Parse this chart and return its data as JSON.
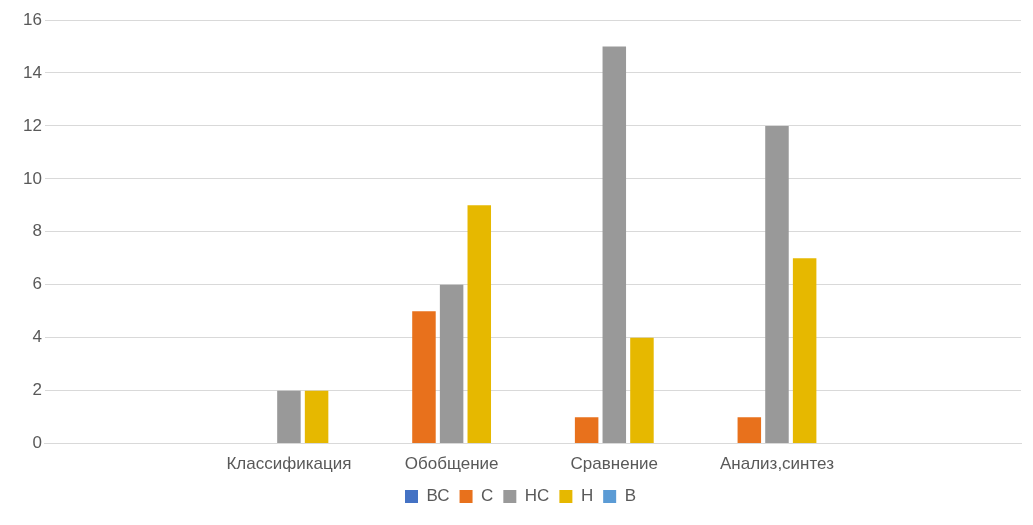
{
  "chart_data": {
    "type": "bar",
    "categories": [
      null,
      "Классификация",
      "Обобщение",
      "Сравнение",
      "Анализ,синтез",
      null
    ],
    "series": [
      {
        "name": "ВС",
        "color": "#4472c4",
        "values": [
          null,
          0,
          0,
          0,
          0,
          null
        ]
      },
      {
        "name": "С",
        "color": "#e8711c",
        "values": [
          null,
          0,
          5,
          1,
          1,
          null
        ]
      },
      {
        "name": "НС",
        "color": "#999999",
        "values": [
          null,
          2,
          6,
          15,
          12,
          null
        ]
      },
      {
        "name": "Н",
        "color": "#e6b800",
        "values": [
          null,
          2,
          9,
          4,
          7,
          null
        ]
      },
      {
        "name": "В",
        "color": "#5b9bd5",
        "values": [
          null,
          0,
          0,
          0,
          0,
          null
        ]
      }
    ],
    "ylim": [
      0,
      16
    ],
    "yticks": [
      0,
      2,
      4,
      6,
      8,
      10,
      12,
      14,
      16
    ],
    "grid": "y",
    "legend": "bottom"
  }
}
